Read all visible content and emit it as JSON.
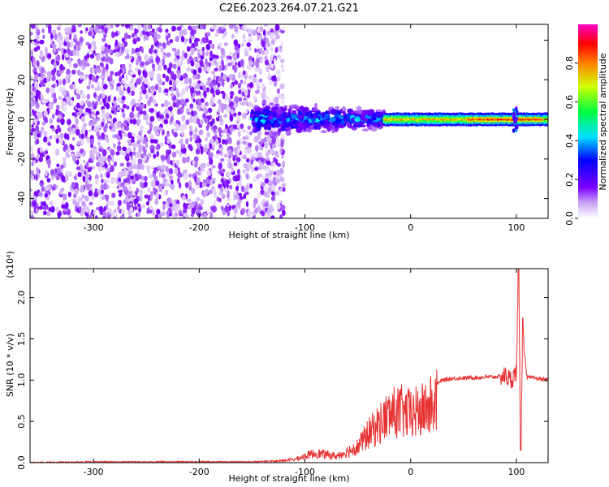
{
  "title": "C2E6.2023.264.07.21.G21",
  "chart_data": [
    {
      "type": "heatmap",
      "xlabel": "Height of straight line (km)",
      "ylabel": "Frequency (Hz)",
      "xlim": [
        -360,
        130
      ],
      "ylim": [
        -50,
        48
      ],
      "xticks": [
        -300,
        -200,
        -100,
        0,
        100
      ],
      "yticks": [
        -40,
        -20,
        0,
        20,
        40
      ],
      "colorbar": {
        "label": "Normalized spectral amplitude",
        "ticks": [
          "0.0",
          "0.2",
          "0.4",
          "0.6",
          "0.8"
        ],
        "range": [
          0,
          1
        ],
        "colormap": "rainbow (white → purple → blue → cyan → green → yellow → red → magenta)"
      },
      "regions": [
        {
          "x_range": [
            -360,
            -130
          ],
          "freq_range": [
            -50,
            48
          ],
          "amplitude_range": [
            0.0,
            0.12
          ],
          "description": "noise"
        },
        {
          "x_range": [
            -150,
            -25
          ],
          "freq_range": [
            -10,
            10
          ],
          "amplitude_range": [
            0.1,
            0.45
          ]
        },
        {
          "x_range": [
            -25,
            130
          ],
          "freq_range": [
            -3,
            3
          ],
          "amplitude_range": [
            0.3,
            0.9
          ]
        }
      ]
    },
    {
      "type": "line",
      "xlabel": "Height of straight line (km)",
      "ylabel": "SNR (10 * v/v)",
      "multiplier": "(x10⁴)",
      "xlim": [
        -360,
        130
      ],
      "ylim": [
        0,
        2.35
      ],
      "xticks": [
        -300,
        -200,
        -100,
        0,
        100
      ],
      "yticks": [
        "0.0",
        "0.5",
        "1.0",
        "1.5",
        "2.0"
      ],
      "series_color": "#e83333",
      "x": [
        -360,
        -300,
        -200,
        -150,
        -130,
        -110,
        -90,
        -70,
        -50,
        -40,
        -30,
        -20,
        -10,
        0,
        10,
        20,
        30,
        40,
        60,
        80,
        90,
        95,
        100,
        102,
        104,
        106,
        110,
        120,
        130
      ],
      "y": [
        0.0,
        0.01,
        0.01,
        0.01,
        0.02,
        0.05,
        0.15,
        0.1,
        0.25,
        0.45,
        0.6,
        0.75,
        0.8,
        0.75,
        0.8,
        0.9,
        1.0,
        1.02,
        1.03,
        1.04,
        1.05,
        1.0,
        1.1,
        2.35,
        0.2,
        1.6,
        1.03,
        1.02,
        1.0
      ]
    }
  ]
}
